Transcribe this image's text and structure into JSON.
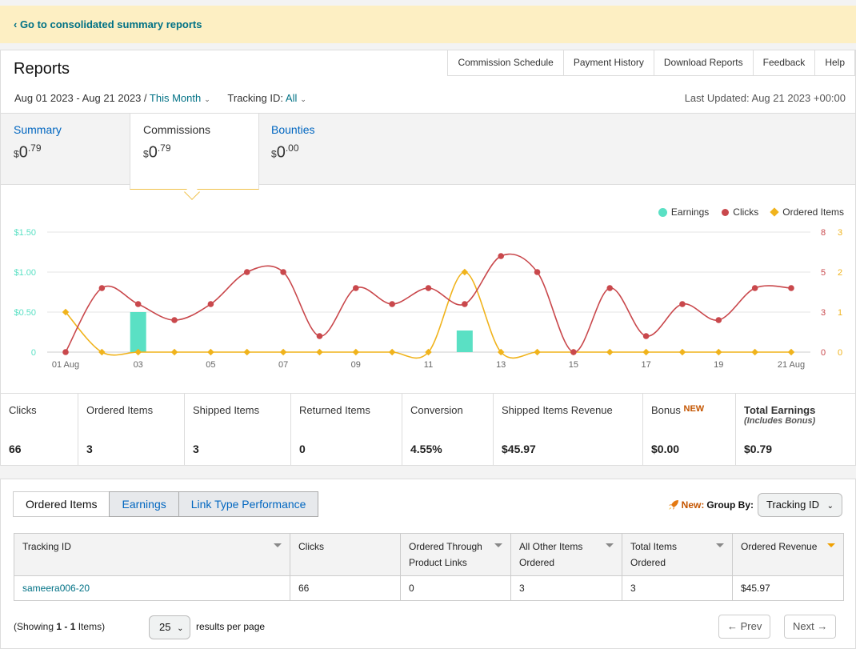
{
  "banner": {
    "link": "‹ Go to consolidated summary reports"
  },
  "header": {
    "title": "Reports",
    "nav": [
      "Commission Schedule",
      "Payment History",
      "Download Reports",
      "Feedback",
      "Help"
    ],
    "date_range": "Aug 01 2023 - Aug 21 2023 /",
    "period": "This Month",
    "tracking_label": "Tracking ID:",
    "tracking_value": "All",
    "last_updated": "Last Updated: Aug 21 2023 +00:00"
  },
  "summary_tabs": [
    {
      "label": "Summary",
      "currency": "$",
      "whole": "0",
      "cents": ".79"
    },
    {
      "label": "Commissions",
      "currency": "$",
      "whole": "0",
      "cents": ".79"
    },
    {
      "label": "Bounties",
      "currency": "$",
      "whole": "0",
      "cents": ".00"
    }
  ],
  "legend": {
    "earnings": "Earnings",
    "clicks": "Clicks",
    "ordered": "Ordered Items"
  },
  "chart_data": {
    "type": "line",
    "x": [
      "01 Aug",
      "02",
      "03",
      "04",
      "05",
      "06",
      "07",
      "08",
      "09",
      "10",
      "11",
      "12",
      "13",
      "14",
      "15",
      "16",
      "17",
      "18",
      "19",
      "20",
      "21 Aug"
    ],
    "x_tick_labels": [
      "01 Aug",
      "03",
      "05",
      "07",
      "09",
      "11",
      "13",
      "15",
      "17",
      "19",
      "21 Aug"
    ],
    "series": [
      {
        "name": "Earnings",
        "chart": "bar",
        "axis": "left",
        "values": [
          0,
          0,
          0.5,
          0,
          0,
          0,
          0,
          0,
          0,
          0,
          0,
          0.27,
          0,
          0,
          0,
          0,
          0,
          0,
          0,
          0,
          0
        ]
      },
      {
        "name": "Clicks",
        "axis": "right1",
        "values": [
          0,
          4,
          3,
          2,
          3,
          5,
          5,
          1,
          4,
          3,
          4,
          3,
          6,
          5,
          0,
          4,
          1,
          3,
          2,
          4,
          4
        ]
      },
      {
        "name": "Ordered Items",
        "axis": "right2",
        "values": [
          1,
          0,
          0,
          0,
          0,
          0,
          0,
          0,
          0,
          0,
          0,
          2,
          0,
          0,
          0,
          0,
          0,
          0,
          0,
          0,
          0
        ]
      }
    ],
    "left_axis": {
      "ticks": [
        "0",
        "$0.50",
        "$1.00",
        "$1.50"
      ],
      "range": [
        0,
        1.5
      ]
    },
    "right1_axis": {
      "ticks": [
        "0",
        "3",
        "5",
        "8"
      ],
      "range": [
        0,
        7.5
      ]
    },
    "right2_axis": {
      "ticks": [
        "0",
        "1",
        "2",
        "3"
      ],
      "range": [
        0,
        3
      ]
    },
    "colors": {
      "earnings": "#5ae0c4",
      "clicks": "#c9484c",
      "ordered": "#f0b31c"
    }
  },
  "metrics": [
    {
      "label": "Clicks",
      "value": "66"
    },
    {
      "label": "Ordered Items",
      "value": "3"
    },
    {
      "label": "Shipped Items",
      "value": "3"
    },
    {
      "label": "Returned Items",
      "value": "0"
    },
    {
      "label": "Conversion",
      "value": "4.55%"
    },
    {
      "label": "Shipped Items Revenue",
      "value": "$45.97"
    },
    {
      "label": "Bonus",
      "tag": "NEW",
      "value": "$0.00"
    },
    {
      "label": "Total Earnings",
      "sub": "(Includes Bonus)",
      "value": "$0.79"
    }
  ],
  "bottom": {
    "tabs": [
      "Ordered Items",
      "Earnings",
      "Link Type Performance"
    ],
    "new_label": "New:",
    "group_by_label": "Group By:",
    "group_by_value": "Tracking ID",
    "table": {
      "headers": [
        "Tracking ID",
        "Clicks",
        "Ordered Through Product Links",
        "All Other Items Ordered",
        "Total Items Ordered",
        "Ordered Revenue"
      ],
      "rows": [
        [
          "sameera006-20",
          "66",
          "0",
          "3",
          "3",
          "$45.97"
        ]
      ]
    },
    "showing_prefix": "(Showing ",
    "showing_range": "1 - 1",
    "showing_suffix": " Items)",
    "per_page": "25",
    "per_page_label": "results per page",
    "prev": "← Prev",
    "next": "Next →"
  }
}
